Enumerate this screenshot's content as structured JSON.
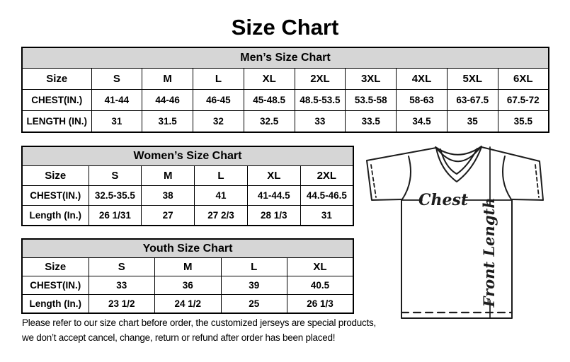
{
  "title": "Size Chart",
  "tables": {
    "men": {
      "header": "Men’s Size Chart",
      "rows": [
        {
          "label": "Size",
          "values": [
            "S",
            "M",
            "L",
            "XL",
            "2XL",
            "3XL",
            "4XL",
            "5XL",
            "6XL"
          ]
        },
        {
          "label": "CHEST(IN.)",
          "values": [
            "41-44",
            "44-46",
            "46-45",
            "45-48.5",
            "48.5-53.5",
            "53.5-58",
            "58-63",
            "63-67.5",
            "67.5-72"
          ]
        },
        {
          "label": "LENGTH (IN.)",
          "values": [
            "31",
            "31.5",
            "32",
            "32.5",
            "33",
            "33.5",
            "34.5",
            "35",
            "35.5"
          ]
        }
      ]
    },
    "women": {
      "header": "Women’s Size Chart",
      "rows": [
        {
          "label": "Size",
          "values": [
            "S",
            "M",
            "L",
            "XL",
            "2XL"
          ]
        },
        {
          "label": "CHEST(IN.)",
          "values": [
            "32.5-35.5",
            "38",
            "41",
            "41-44.5",
            "44.5-46.5"
          ]
        },
        {
          "label": "Length (In.)",
          "values": [
            "26 1/31",
            "27",
            "27 2/3",
            "28 1/3",
            "31"
          ]
        }
      ]
    },
    "youth": {
      "header": "Youth Size Chart",
      "rows": [
        {
          "label": "Size",
          "values": [
            "S",
            "M",
            "L",
            "XL"
          ]
        },
        {
          "label": "CHEST(IN.)",
          "values": [
            "33",
            "36",
            "39",
            "40.5"
          ]
        },
        {
          "label": "Length (In.)",
          "values": [
            "23 1/2",
            "24 1/2",
            "25",
            "26 1/3"
          ]
        }
      ]
    }
  },
  "diagram": {
    "chest_label": "Chest",
    "front_length_label": "Front Length"
  },
  "disclaimer": {
    "line1": "Please refer to our size chart before order, the customized jerseys are special products,",
    "line2": "we don’t accept cancel, change, return or refund after order has been placed!"
  },
  "colors": {
    "table_header_bg": "#d6d6d6",
    "border": "#000000",
    "text": "#000000",
    "background": "#ffffff"
  }
}
